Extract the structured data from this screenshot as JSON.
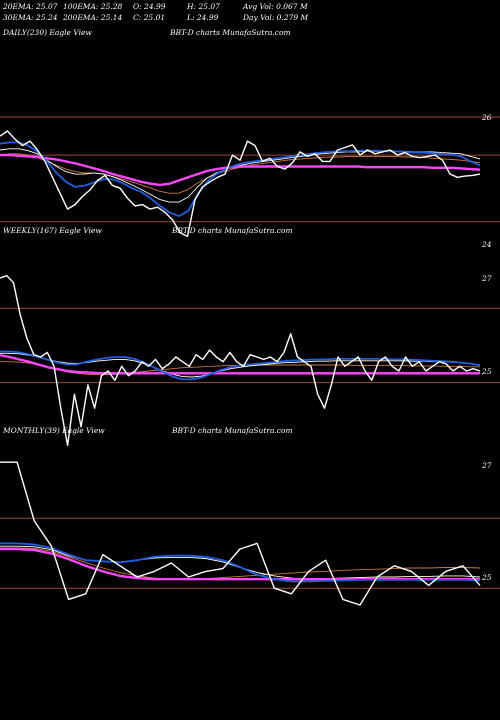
{
  "header": {
    "ema20": "20EMA: 25.07",
    "ema100": "100EMA: 25.28",
    "open": "O: 24.99",
    "high": "H: 25.07",
    "avgvol": "Avg Vol: 0.067 M",
    "ema30": "30EMA: 25.24",
    "ema200": "200EMA: 25.14",
    "close": "C: 25.01",
    "low": "L: 24.99",
    "dayvol": "Day Vol: 0.279 M"
  },
  "colors": {
    "background": "#000000",
    "price": "#ffffff",
    "ema_short": "#1f5fe0",
    "ema_mid": "#ffffff",
    "ema_long": "#c87a3c",
    "ema_longest": "#ff44ff",
    "level_line": "#9a4a38"
  },
  "chart_data": [
    {
      "type": "line",
      "panel": "daily",
      "label": "DAILY(230) Eagle View",
      "source": "BBT-D charts MunafaSutra.com",
      "ticks": [
        {
          "value": 26,
          "label": "26"
        },
        {
          "value": 24,
          "label": "24"
        }
      ],
      "level_lines": [
        26,
        25.4,
        24.35
      ],
      "series": [
        {
          "role": "price",
          "values": [
            25.7,
            25.78,
            25.65,
            25.55,
            25.62,
            25.48,
            25.3,
            25.05,
            24.8,
            24.55,
            24.62,
            24.75,
            24.85,
            25.0,
            25.08,
            24.92,
            24.88,
            24.72,
            24.6,
            24.62,
            24.55,
            24.58,
            24.5,
            24.38,
            24.18,
            24.12,
            24.7,
            24.9,
            24.98,
            25.05,
            25.1,
            25.4,
            25.32,
            25.62,
            25.55,
            25.3,
            25.35,
            25.22,
            25.18,
            25.28,
            25.45,
            25.38,
            25.42,
            25.3,
            25.3,
            25.48,
            25.52,
            25.56,
            25.4,
            25.48,
            25.42,
            25.45,
            25.48,
            25.4,
            25.44,
            25.38,
            25.36,
            25.38,
            25.4,
            25.32,
            25.1,
            25.05,
            25.07,
            25.08,
            25.1
          ]
        },
        {
          "role": "ema-short",
          "values": [
            25.58,
            25.6,
            25.6,
            25.55,
            25.45,
            25.3,
            25.12,
            24.98,
            24.9,
            24.92,
            24.97,
            25.02,
            25.02,
            24.96,
            24.88,
            24.82,
            24.72,
            24.6,
            24.5,
            24.44,
            24.52,
            24.78,
            24.98,
            25.1,
            25.18,
            25.24,
            25.28,
            25.3,
            25.32,
            25.34,
            25.36,
            25.38,
            25.4,
            25.42,
            25.44,
            25.45,
            25.46,
            25.46,
            25.47,
            25.47,
            25.47,
            25.46,
            25.46,
            25.45,
            25.44,
            25.44,
            25.43,
            25.42,
            25.41,
            25.38,
            25.3,
            25.24
          ]
        },
        {
          "role": "ema-mid",
          "values": [
            25.48,
            25.5,
            25.5,
            25.47,
            25.42,
            25.32,
            25.22,
            25.14,
            25.1,
            25.1,
            25.12,
            25.1,
            25.06,
            25.0,
            24.93,
            24.86,
            24.78,
            24.7,
            24.66,
            24.66,
            24.74,
            24.9,
            25.04,
            25.12,
            25.18,
            25.22,
            25.25,
            25.28,
            25.3,
            25.32,
            25.34,
            25.36,
            25.38,
            25.4,
            25.42,
            25.43,
            25.44,
            25.45,
            25.45,
            25.46,
            25.46,
            25.46,
            25.46,
            25.46,
            25.45,
            25.45,
            25.45,
            25.44,
            25.43,
            25.42,
            25.38,
            25.34
          ]
        },
        {
          "role": "ema-long",
          "values": [
            25.4,
            25.42,
            25.42,
            25.4,
            25.36,
            25.3,
            25.24,
            25.18,
            25.14,
            25.12,
            25.12,
            25.1,
            25.06,
            25.02,
            24.98,
            24.93,
            24.88,
            24.83,
            24.8,
            24.8,
            24.86,
            24.96,
            25.04,
            25.1,
            25.15,
            25.19,
            25.22,
            25.25,
            25.27,
            25.29,
            25.31,
            25.33,
            25.34,
            25.35,
            25.36,
            25.37,
            25.37,
            25.38,
            25.38,
            25.38,
            25.38,
            25.38,
            25.38,
            25.37,
            25.37,
            25.36,
            25.35,
            25.34,
            25.33,
            25.32,
            25.3,
            25.28
          ]
        },
        {
          "role": "ema-longest",
          "values": [
            25.4,
            25.4,
            25.39,
            25.38,
            25.37,
            25.35,
            25.33,
            25.3,
            25.27,
            25.23,
            25.19,
            25.15,
            25.1,
            25.06,
            25.02,
            24.98,
            24.95,
            24.93,
            24.95,
            25.0,
            25.05,
            25.1,
            25.15,
            25.18,
            25.2,
            25.21,
            25.22,
            25.22,
            25.22,
            25.22,
            25.22,
            25.22,
            25.22,
            25.22,
            25.22,
            25.22,
            25.22,
            25.22,
            25.22,
            25.21,
            25.21,
            25.21,
            25.21,
            25.21,
            25.21,
            25.21,
            25.2,
            25.2,
            25.2,
            25.19,
            25.18,
            25.17
          ]
        }
      ]
    },
    {
      "type": "line",
      "panel": "weekly",
      "label": "WEEKLY(167) Eagle View",
      "source": "BBT-D charts MunafaSutra.com",
      "ticks": [
        {
          "value": 27,
          "label": "27"
        },
        {
          "value": 25,
          "label": "25"
        }
      ],
      "level_lines": [
        26.35,
        24.75
      ],
      "series": [
        {
          "role": "price",
          "values": [
            27.0,
            27.05,
            26.9,
            26.2,
            25.7,
            25.35,
            25.3,
            25.4,
            25.1,
            24.2,
            23.4,
            24.5,
            23.8,
            24.7,
            24.2,
            24.9,
            25.0,
            24.8,
            25.1,
            24.9,
            25.0,
            25.2,
            25.1,
            25.25,
            25.05,
            25.15,
            25.3,
            25.2,
            25.1,
            25.35,
            25.25,
            25.45,
            25.3,
            25.2,
            25.4,
            25.2,
            25.1,
            25.35,
            25.3,
            25.25,
            25.3,
            25.2,
            25.4,
            25.8,
            25.3,
            25.2,
            25.1,
            24.5,
            24.2,
            24.7,
            25.3,
            25.1,
            25.2,
            25.3,
            25.0,
            24.8,
            25.2,
            25.3,
            25.1,
            25.0,
            25.3,
            25.1,
            25.2,
            25.0,
            25.1,
            25.2,
            25.15,
            25.0,
            25.1,
            25.0,
            25.05,
            25.0
          ]
        },
        {
          "role": "ema-short",
          "values": [
            25.42,
            25.42,
            25.4,
            25.36,
            25.3,
            25.24,
            25.18,
            25.14,
            25.14,
            25.2,
            25.24,
            25.28,
            25.3,
            25.3,
            25.26,
            25.18,
            25.08,
            24.98,
            24.88,
            24.82,
            24.82,
            24.86,
            24.94,
            25.02,
            25.08,
            25.12,
            25.14,
            25.16,
            25.18,
            25.2,
            25.22,
            25.23,
            25.24,
            25.25,
            25.25,
            25.26,
            25.26,
            25.26,
            25.26,
            25.26,
            25.26,
            25.25,
            25.25,
            25.24,
            25.23,
            25.22,
            25.21,
            25.2,
            25.18,
            25.16,
            25.12
          ]
        },
        {
          "role": "ema-mid",
          "values": [
            25.38,
            25.38,
            25.37,
            25.34,
            25.3,
            25.25,
            25.2,
            25.17,
            25.16,
            25.18,
            25.21,
            25.23,
            25.25,
            25.25,
            25.22,
            25.16,
            25.08,
            25.0,
            24.93,
            24.88,
            24.87,
            24.89,
            24.94,
            25.0,
            25.05,
            25.08,
            25.11,
            25.13,
            25.15,
            25.17,
            25.18,
            25.19,
            25.2,
            25.21,
            25.21,
            25.22,
            25.22,
            25.22,
            25.22,
            25.22,
            25.22,
            25.22,
            25.22,
            25.21,
            25.21,
            25.2,
            25.2,
            25.19,
            25.18,
            25.16,
            25.13
          ]
        },
        {
          "role": "ema-long",
          "values": [
            25.2,
            25.2,
            25.19,
            25.17,
            25.13,
            25.08,
            25.03,
            24.98,
            24.95,
            24.93,
            24.92,
            24.92,
            24.93,
            24.95,
            24.97,
            24.99,
            25.01,
            25.03,
            25.05,
            25.07,
            25.08,
            25.09,
            25.1,
            25.11,
            25.12,
            25.12,
            25.13,
            25.13,
            25.13,
            25.13,
            25.13,
            25.13,
            25.13,
            25.13,
            25.13,
            25.13,
            25.13,
            25.12,
            25.12,
            25.12,
            25.12,
            25.12,
            25.12,
            25.11,
            25.11,
            25.11,
            25.1,
            25.1,
            25.1,
            25.09,
            25.09
          ]
        },
        {
          "role": "ema-longest",
          "values": [
            25.34,
            25.3,
            25.25,
            25.2,
            25.14,
            25.08,
            25.04,
            25.0,
            24.98,
            24.97,
            24.96,
            24.95,
            24.95,
            24.95,
            24.95,
            24.95,
            24.95,
            24.95,
            24.95,
            24.95,
            24.95,
            24.95,
            24.95,
            24.95,
            24.95,
            24.95,
            24.95,
            24.95,
            24.95,
            24.95,
            24.95,
            24.95,
            24.95,
            24.95,
            24.95,
            24.95,
            24.95,
            24.95,
            24.95,
            24.95,
            24.95,
            24.95,
            24.95,
            24.95,
            24.95,
            24.95,
            24.95,
            24.95,
            24.95,
            24.95,
            24.95
          ]
        }
      ]
    },
    {
      "type": "line",
      "panel": "monthly",
      "label": "MONTHLY(39) Eagle View",
      "source": "BBT-D charts MunafaSutra.com",
      "ticks": [
        {
          "value": 27,
          "label": "27"
        },
        {
          "value": 25,
          "label": "25"
        }
      ],
      "level_lines": [
        26.05,
        24.8
      ],
      "series": [
        {
          "role": "price",
          "values": [
            27.05,
            27.05,
            26.0,
            25.55,
            24.6,
            24.7,
            25.4,
            25.2,
            25.0,
            25.1,
            25.25,
            25.0,
            25.1,
            25.15,
            25.5,
            25.6,
            24.8,
            24.7,
            25.1,
            25.3,
            24.6,
            24.5,
            25.0,
            25.2,
            25.1,
            24.85,
            25.1,
            25.2,
            24.85
          ]
        },
        {
          "role": "ema-short",
          "values": [
            25.6,
            25.6,
            25.58,
            25.52,
            25.4,
            25.3,
            25.28,
            25.26,
            25.3,
            25.36,
            25.38,
            25.38,
            25.36,
            25.3,
            25.18,
            25.04,
            24.96,
            24.92,
            24.92,
            24.93,
            24.94,
            24.95,
            24.95,
            24.95,
            24.95,
            24.95,
            24.95,
            24.95,
            24.94
          ]
        },
        {
          "role": "ema-mid",
          "values": [
            25.55,
            25.55,
            25.54,
            25.49,
            25.38,
            25.3,
            25.28,
            25.27,
            25.3,
            25.34,
            25.35,
            25.35,
            25.33,
            25.27,
            25.17,
            25.08,
            25.02,
            24.98,
            24.96,
            24.97,
            24.98,
            24.99,
            25.0,
            25.0,
            25.01,
            25.01,
            25.02,
            25.02,
            25.0
          ]
        },
        {
          "role": "ema-long",
          "values": [
            25.52,
            25.52,
            25.51,
            25.46,
            25.36,
            25.26,
            25.16,
            25.08,
            25.02,
            24.98,
            24.96,
            24.96,
            24.97,
            24.99,
            25.01,
            25.03,
            25.05,
            25.07,
            25.09,
            25.1,
            25.12,
            25.13,
            25.14,
            25.15,
            25.16,
            25.16,
            25.17,
            25.17,
            25.16
          ]
        },
        {
          "role": "ema-longest",
          "values": [
            25.5,
            25.5,
            25.48,
            25.42,
            25.32,
            25.2,
            25.1,
            25.02,
            24.98,
            24.96,
            24.96,
            24.96,
            24.96,
            24.96,
            24.96,
            24.96,
            24.96,
            24.96,
            24.96,
            24.96,
            24.96,
            24.96,
            24.96,
            24.96,
            24.96,
            24.96,
            24.96,
            24.96,
            24.96
          ]
        }
      ]
    }
  ]
}
